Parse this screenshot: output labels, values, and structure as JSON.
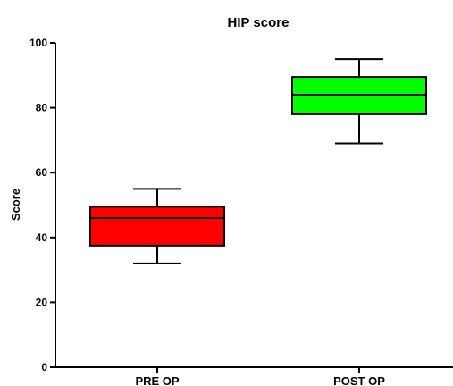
{
  "chart_data": {
    "type": "boxplot",
    "title": "HIP score",
    "xlabel": "",
    "ylabel": "Score",
    "ylim": [
      0,
      100
    ],
    "yticks": [
      0,
      20,
      40,
      60,
      80,
      100
    ],
    "grid": false,
    "legend": "none",
    "categories": [
      "PRE OP",
      "POST OP"
    ],
    "boxes": [
      {
        "category": "PRE OP",
        "min": 32,
        "q1": 37.5,
        "median": 46,
        "q3": 49.5,
        "max": 55,
        "color": "#ff0000"
      },
      {
        "category": "POST OP",
        "min": 69,
        "q1": 78,
        "median": 84,
        "q3": 89.5,
        "max": 95,
        "color": "#00ff00"
      }
    ]
  }
}
